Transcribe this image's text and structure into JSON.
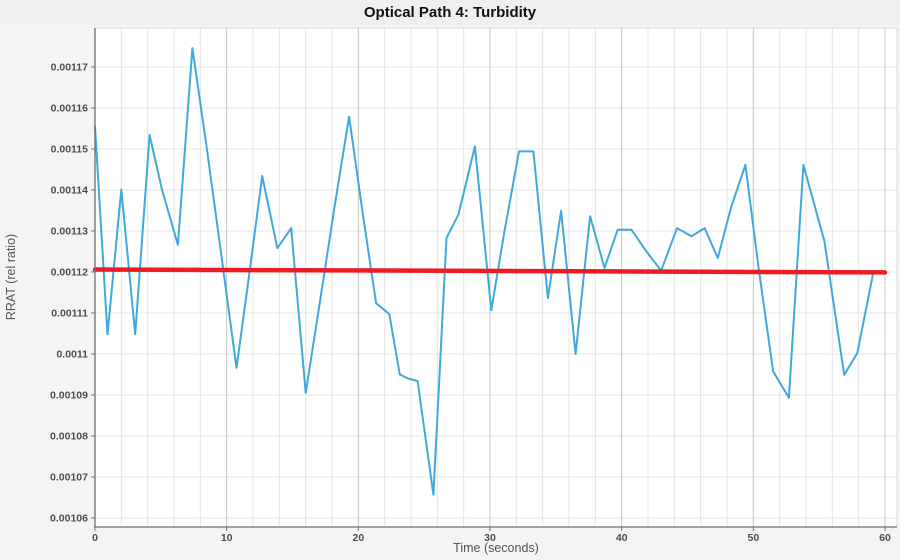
{
  "title": "Optical Path 4: Turbidity",
  "axes": {
    "x_label": "Time (seconds)",
    "y_label": "RRAT (rel ratio)",
    "x_ticks": [
      {
        "v": 0,
        "label": "0"
      },
      {
        "v": 10,
        "label": "10"
      },
      {
        "v": 20,
        "label": "20"
      },
      {
        "v": 30,
        "label": "30"
      },
      {
        "v": 40,
        "label": "40"
      },
      {
        "v": 50,
        "label": "50"
      },
      {
        "v": 60,
        "label": "60"
      }
    ],
    "y_ticks": [
      {
        "v": 0.00117,
        "label": "0.00117"
      },
      {
        "v": 0.00116,
        "label": "0.00116"
      },
      {
        "v": 0.00115,
        "label": "0.00115"
      },
      {
        "v": 0.00114,
        "label": "0.00114"
      },
      {
        "v": 0.00113,
        "label": "0.00113"
      },
      {
        "v": 0.00112,
        "label": "0.00112"
      },
      {
        "v": 0.00111,
        "label": "0.00111"
      },
      {
        "v": 0.0011,
        "label": "0.0011"
      },
      {
        "v": 0.00109,
        "label": "0.00109"
      },
      {
        "v": 0.00108,
        "label": "0.00108"
      },
      {
        "v": 0.00107,
        "label": "0.00107"
      },
      {
        "v": 0.00106,
        "label": "0.00106"
      }
    ]
  },
  "chart_data": {
    "type": "line",
    "title": "Optical Path 4: Turbidity",
    "xlabel": "Time (seconds)",
    "ylabel": "RRAT (rel ratio)",
    "xlim": [
      0,
      60.9
    ],
    "ylim": [
      0.0010578,
      0.0011795
    ],
    "x_major_step": 10,
    "x_minor_step": 2,
    "grid": true,
    "legend": false,
    "series": [
      {
        "name": "turbidity_signal",
        "color": "#3FA9DC",
        "width": 2,
        "x": [
          0,
          0.95,
          2.0,
          3.05,
          4.15,
          5.1,
          6.3,
          7.4,
          8.5,
          9.6,
          10.75,
          11.7,
          12.7,
          13.85,
          14.9,
          16.0,
          17.1,
          18.2,
          19.3,
          20.3,
          21.35,
          22.35,
          23.15,
          23.8,
          24.5,
          25.7,
          26.7,
          27.6,
          28.85,
          30.1,
          31.1,
          32.2,
          33.3,
          34.4,
          35.4,
          36.5,
          37.6,
          38.7,
          39.7,
          40.75,
          41.9,
          43.0,
          44.2,
          45.3,
          46.3,
          47.3,
          48.3,
          49.4,
          50.4,
          51.5,
          52.7,
          53.8,
          55.4,
          56.9,
          57.9,
          59.1,
          60.0
        ],
        "y": [
          0.0011555,
          0.0011048,
          0.0011401,
          0.0011048,
          0.0011534,
          0.00114,
          0.0011266,
          0.0011746,
          0.00115,
          0.001124,
          0.0010966,
          0.001119,
          0.0011434,
          0.0011258,
          0.0011307,
          0.0010905,
          0.001113,
          0.001136,
          0.0011579,
          0.001135,
          0.0011124,
          0.0011097,
          0.001095,
          0.001094,
          0.0010934,
          0.0010657,
          0.0011283,
          0.001134,
          0.0011506,
          0.0011107,
          0.00113,
          0.0011494,
          0.0011494,
          0.0011136,
          0.0011349,
          0.0011,
          0.0011336,
          0.001121,
          0.0011303,
          0.0011303,
          0.0011249,
          0.0011203,
          0.0011307,
          0.0011287,
          0.0011307,
          0.0011234,
          0.0011356,
          0.0011461,
          0.001121,
          0.0010958,
          0.0010893,
          0.0011461,
          0.0011275,
          0.0010949,
          0.0011002,
          0.0011196,
          0.00112
        ]
      },
      {
        "name": "trend_line",
        "color": "#EC1C24",
        "width": 4.5,
        "x": [
          0,
          60
        ],
        "y": [
          0.0011206,
          0.0011199
        ]
      }
    ]
  },
  "colors": {
    "figure_bg": "#f4f4f4",
    "title_bg": "#efefef",
    "plot_bg": "#ffffff",
    "grid_minor": "#e4e4e4",
    "grid_major": "#c4c4c4",
    "plot_border": "#dadada",
    "axis": "#707070",
    "signal": "#3FA9DC",
    "trend": "#EC1C24",
    "tick_text": "#4d4d4d",
    "axis_title_text": "#555555",
    "title_text": "#111111"
  }
}
